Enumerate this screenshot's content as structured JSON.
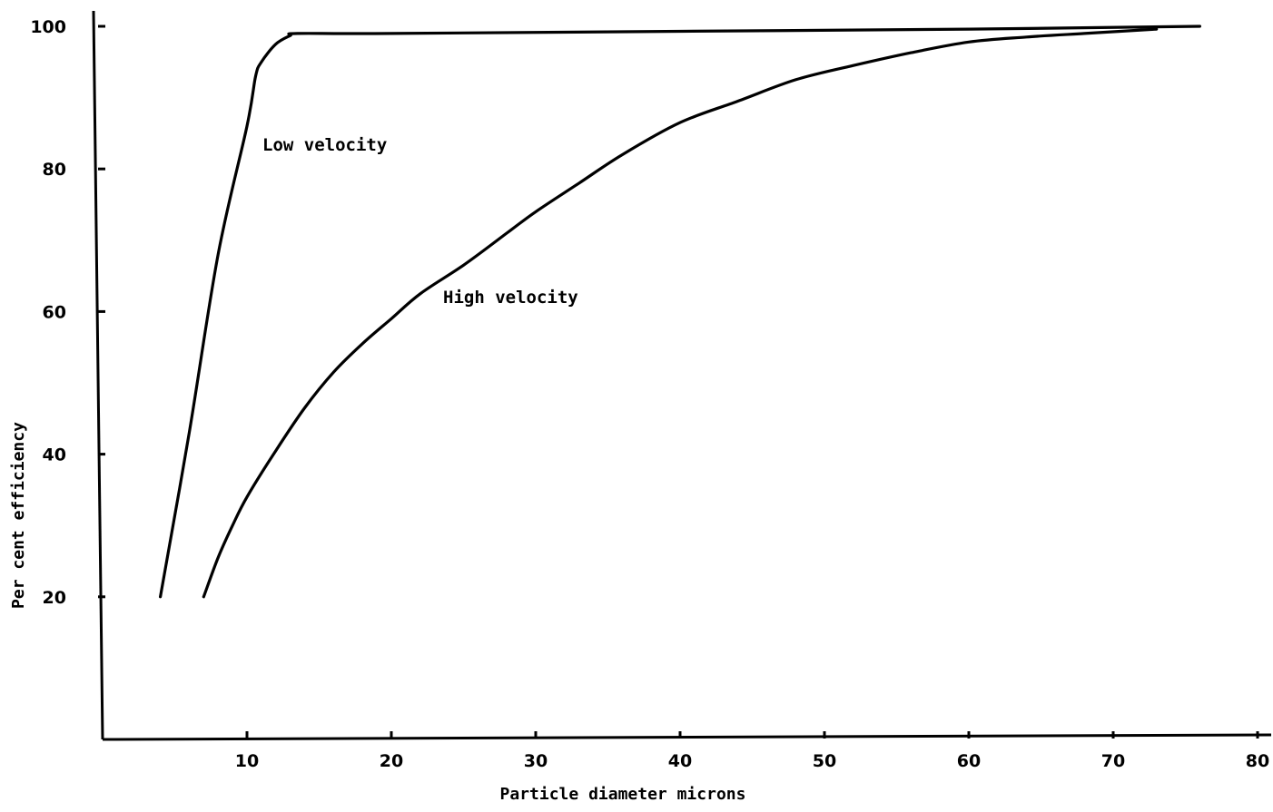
{
  "chart_data": {
    "type": "line",
    "xlabel": "Particle diameter  microns",
    "ylabel": "Per cent efficiency",
    "xlim": [
      0,
      80
    ],
    "ylim": [
      0,
      100
    ],
    "x_ticks": [
      10,
      20,
      30,
      40,
      50,
      60,
      70,
      80
    ],
    "y_ticks": [
      20,
      40,
      60,
      80,
      100
    ],
    "grid": false,
    "legend": "none",
    "line_color": "#000000",
    "series": [
      {
        "name": "Low velocity",
        "x": [
          4,
          6,
          8,
          10,
          10.6,
          11,
          12,
          13,
          13.5,
          20,
          40,
          60,
          76
        ],
        "y": [
          20,
          43,
          68,
          86,
          93,
          95,
          97.5,
          98.7,
          99,
          99,
          99.3,
          99.6,
          100
        ]
      },
      {
        "name": "High velocity",
        "x": [
          7,
          8,
          9,
          10,
          12,
          14,
          16,
          18,
          20,
          22,
          25,
          28,
          30,
          33,
          36,
          40,
          44,
          48,
          52,
          56,
          60,
          64,
          68,
          73
        ],
        "y": [
          20,
          25.5,
          30,
          34,
          40.5,
          46.5,
          51.5,
          55.5,
          59,
          62.5,
          66.5,
          71,
          74,
          78,
          82,
          86.5,
          89.5,
          92.5,
          94.5,
          96.3,
          97.8,
          98.5,
          99,
          99.6
        ]
      }
    ]
  }
}
